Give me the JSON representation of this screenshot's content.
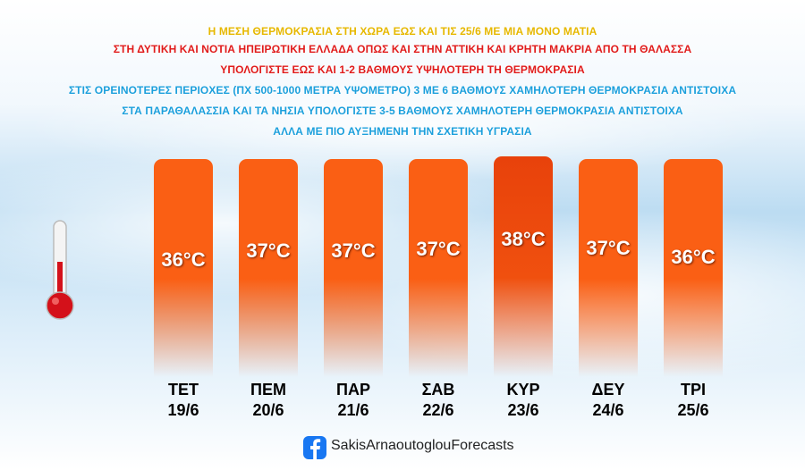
{
  "header": {
    "lines": [
      "Η ΜΕΣΗ ΘΕΡΜΟΚΡΑΣΙΑ ΣΤΗ ΧΩΡΑ ΕΩΣ ΚΑΙ ΤΙΣ 25/6 ΜΕ ΜΙΑ ΜΟΝΟ ΜΑΤΙΑ",
      "ΣΤΗ ΔΥΤΙΚΗ ΚΑΙ ΝΟΤΙΑ ΗΠΕΙΡΩΤΙΚΗ ΕΛΛΑΔΑ ΟΠΩΣ ΚΑΙ ΣΤΗΝ ΑΤΤΙΚΗ ΚΑΙ ΚΡΗΤΗ ΜΑΚΡΙΑ ΑΠΟ ΤΗ ΘΑΛΑΣΣΑ",
      "ΥΠΟΛΟΓΙΣΤΕ ΕΩΣ ΚΑΙ 1-2 ΒΑΘΜΟΥΣ ΥΨΗΛΟΤΕΡΗ ΤΗ ΘΕΡΜΟΚΡΑΣΙΑ",
      "ΣΤΙΣ ΟΡΕΙΝΟΤΕΡΕΣ ΠΕΡΙΟΧΕΣ (ΠΧ 500-1000 ΜΕΤΡΑ ΥΨΟΜΕΤΡΟ) 3 ΜΕ 6 ΒΑΘΜΟΥΣ ΧΑΜΗΛΟΤΕΡΗ ΘΕΡΜΟΚΡΑΣΙΑ ΑΝΤΙΣΤΟΙΧΑ",
      "ΣΤΑ ΠΑΡΑΘΑΛΑΣΣΙΑ ΚΑΙ ΤΑ ΝΗΣΙΑ ΥΠΟΛΟΓΙΣΤΕ 3-5 ΒΑΘΜΟΥΣ ΧΑΜΗΛΟΤΕΡΗ ΘΕΡΜΟΚΡΑΣΙΑ ΑΝΤΙΣΤΟΙΧΑ",
      "ΑΛΛΑ ΜΕ ΠΙΟ ΑΥΞΗΜΕΝΗ ΤΗΝ ΣΧΕΤΙΚΗ ΥΓΡΑΣΙΑ"
    ]
  },
  "days": [
    {
      "day": "ΤΕΤ",
      "date": "19/6",
      "temperature": "36°C"
    },
    {
      "day": "ΠΕΜ",
      "date": "20/6",
      "temperature": "37°C"
    },
    {
      "day": "ΠΑΡ",
      "date": "21/6",
      "temperature": "37°C"
    },
    {
      "day": "ΣΑΒ",
      "date": "22/6",
      "temperature": "37°C"
    },
    {
      "day": "ΚΥΡ",
      "date": "23/6",
      "temperature": "38°C"
    },
    {
      "day": "ΔΕΥ",
      "date": "24/6",
      "temperature": "37°C"
    },
    {
      "day": "ΤΡΙ",
      "date": "25/6",
      "temperature": "36°C"
    }
  ],
  "footer": {
    "page": "SakisArnaoutoglouForecasts"
  }
}
